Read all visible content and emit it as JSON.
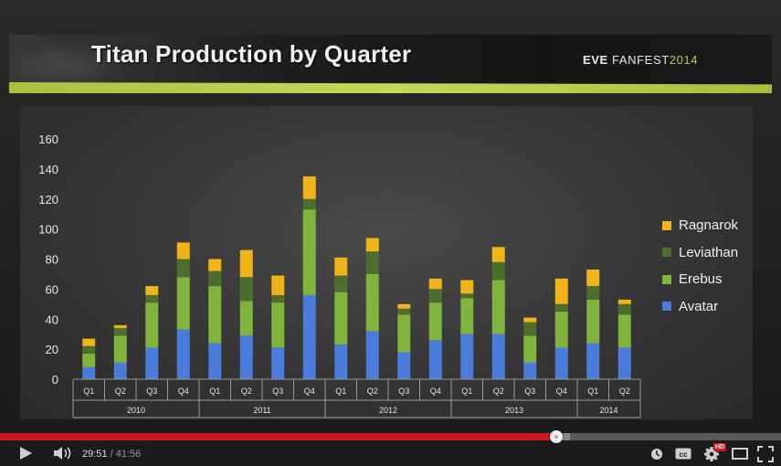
{
  "slide": {
    "title": "Titan Production by Quarter",
    "brand": {
      "name": "EVE",
      "event": "FANFEST",
      "year": "2014"
    }
  },
  "colors": {
    "avatar": "#4a7ddb",
    "erebus": "#80b43d",
    "leviathan": "#4e6e2f",
    "ragnarok": "#f0b418",
    "stripe": "#b4ca48",
    "progress": "#cc181e"
  },
  "chart_data": {
    "type": "bar",
    "stacked": true,
    "categories": [
      "Q1",
      "Q2",
      "Q3",
      "Q4",
      "Q1",
      "Q2",
      "Q3",
      "Q4",
      "Q1",
      "Q2",
      "Q3",
      "Q4",
      "Q1",
      "Q2",
      "Q3",
      "Q4",
      "Q1",
      "Q2"
    ],
    "year_groups": [
      {
        "label": "2010",
        "count": 4
      },
      {
        "label": "2011",
        "count": 4
      },
      {
        "label": "2012",
        "count": 4
      },
      {
        "label": "2013",
        "count": 4
      },
      {
        "label": "2014",
        "count": 2
      }
    ],
    "series": [
      {
        "name": "Avatar",
        "values": [
          8,
          11,
          21,
          33,
          24,
          29,
          21,
          56,
          23,
          32,
          18,
          26,
          30,
          30,
          11,
          21,
          24,
          21
        ]
      },
      {
        "name": "Erebus",
        "values": [
          9,
          18,
          30,
          35,
          38,
          23,
          30,
          57,
          35,
          38,
          25,
          25,
          24,
          36,
          18,
          24,
          29,
          22
        ]
      },
      {
        "name": "Leviathan",
        "values": [
          5,
          5,
          5,
          12,
          10,
          16,
          5,
          7,
          11,
          15,
          4,
          9,
          3,
          12,
          9,
          5,
          9,
          7
        ]
      },
      {
        "name": "Ragnarok",
        "values": [
          5,
          2,
          6,
          11,
          8,
          18,
          13,
          15,
          12,
          9,
          3,
          7,
          9,
          10,
          3,
          17,
          11,
          3
        ]
      }
    ],
    "legend": [
      "Ragnarok",
      "Leviathan",
      "Erebus",
      "Avatar"
    ],
    "legend_position": "right",
    "y_ticks": [
      0,
      20,
      40,
      60,
      80,
      100,
      120,
      140,
      160
    ],
    "ylim": [
      0,
      160
    ],
    "grid": false
  },
  "player": {
    "current_time": "29:51",
    "separator": " / ",
    "total_time": "41:56",
    "played_fraction": 0.7118,
    "buffered_fraction": 0.73,
    "hd_label": "HD",
    "icons": [
      "play-icon",
      "volume-icon",
      "watch-later-icon",
      "captions-icon",
      "settings-icon",
      "theater-mode-icon",
      "fullscreen-icon"
    ]
  }
}
